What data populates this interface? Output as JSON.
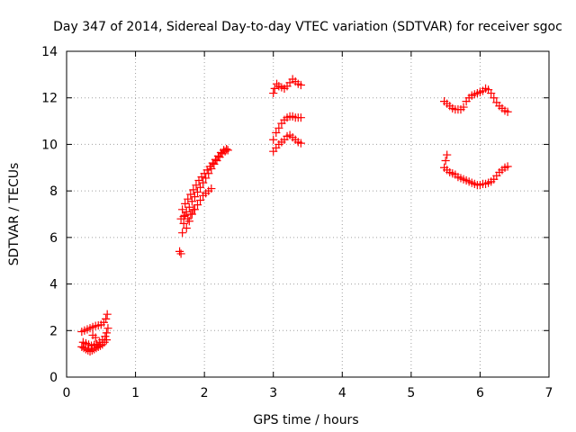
{
  "chart_data": {
    "type": "scatter",
    "title": "Day 347 of 2014, Sidereal Day-to-day VTEC variation (SDTVAR) for receiver sgoc",
    "xlabel": "GPS time / hours",
    "ylabel": "SDTVAR / TECUs",
    "xlim": [
      0,
      7
    ],
    "ylim": [
      0,
      14
    ],
    "xticks": [
      "0",
      "1",
      "2",
      "3",
      "4",
      "5",
      "6",
      "7"
    ],
    "yticks": [
      "0",
      "2",
      "4",
      "6",
      "8",
      "10",
      "12",
      "14"
    ],
    "grid": true,
    "marker": "plus",
    "color": "#ff0000",
    "series": [
      {
        "values": [],
        "points": [
          [
            0.22,
            1.95
          ],
          [
            0.26,
            2.0
          ],
          [
            0.3,
            2.05
          ],
          [
            0.34,
            2.1
          ],
          [
            0.38,
            2.15
          ],
          [
            0.42,
            2.2
          ],
          [
            0.46,
            2.22
          ],
          [
            0.5,
            2.25
          ],
          [
            0.54,
            2.35
          ],
          [
            0.57,
            2.5
          ],
          [
            0.59,
            2.7
          ],
          [
            0.22,
            1.3
          ],
          [
            0.25,
            1.25
          ],
          [
            0.28,
            1.2
          ],
          [
            0.31,
            1.15
          ],
          [
            0.34,
            1.1
          ],
          [
            0.37,
            1.15
          ],
          [
            0.4,
            1.2
          ],
          [
            0.43,
            1.25
          ],
          [
            0.46,
            1.3
          ],
          [
            0.49,
            1.35
          ],
          [
            0.52,
            1.4
          ],
          [
            0.55,
            1.5
          ],
          [
            0.58,
            1.6
          ],
          [
            0.24,
            1.5
          ],
          [
            0.28,
            1.45
          ],
          [
            0.32,
            1.4
          ],
          [
            0.36,
            1.35
          ],
          [
            0.4,
            1.38
          ],
          [
            0.44,
            1.42
          ],
          [
            0.48,
            1.5
          ],
          [
            0.52,
            1.6
          ],
          [
            0.56,
            1.75
          ],
          [
            0.58,
            1.9
          ],
          [
            0.6,
            2.1
          ],
          [
            0.38,
            1.8
          ],
          [
            0.42,
            1.7
          ],
          [
            1.64,
            5.4
          ],
          [
            1.66,
            5.3
          ],
          [
            1.66,
            6.8
          ],
          [
            1.7,
            6.6
          ],
          [
            1.74,
            6.4
          ],
          [
            1.78,
            6.7
          ],
          [
            1.82,
            7.0
          ],
          [
            1.86,
            7.2
          ],
          [
            1.9,
            7.4
          ],
          [
            1.94,
            7.6
          ],
          [
            1.98,
            7.8
          ],
          [
            2.02,
            7.9
          ],
          [
            2.06,
            8.0
          ],
          [
            2.1,
            8.1
          ],
          [
            1.68,
            6.2
          ],
          [
            1.7,
            6.9
          ],
          [
            1.74,
            7.1
          ],
          [
            1.78,
            7.3
          ],
          [
            1.82,
            7.55
          ],
          [
            1.86,
            7.75
          ],
          [
            1.9,
            7.95
          ],
          [
            1.94,
            8.15
          ],
          [
            1.98,
            8.35
          ],
          [
            2.02,
            8.55
          ],
          [
            2.06,
            8.75
          ],
          [
            2.1,
            8.95
          ],
          [
            2.14,
            9.15
          ],
          [
            2.18,
            9.3
          ],
          [
            2.22,
            9.45
          ],
          [
            2.26,
            9.6
          ],
          [
            2.3,
            9.7
          ],
          [
            2.34,
            9.75
          ],
          [
            1.68,
            7.2
          ],
          [
            1.72,
            7.45
          ],
          [
            1.76,
            7.65
          ],
          [
            1.8,
            7.85
          ],
          [
            1.84,
            8.05
          ],
          [
            1.88,
            8.25
          ],
          [
            1.92,
            8.45
          ],
          [
            1.96,
            8.6
          ],
          [
            2.0,
            8.75
          ],
          [
            2.04,
            8.9
          ],
          [
            2.08,
            9.05
          ],
          [
            2.12,
            9.2
          ],
          [
            2.16,
            9.35
          ],
          [
            2.2,
            9.5
          ],
          [
            2.24,
            9.65
          ],
          [
            2.28,
            9.75
          ],
          [
            2.32,
            9.8
          ],
          [
            1.72,
            6.95
          ],
          [
            1.76,
            6.8
          ],
          [
            1.8,
            7.0
          ],
          [
            1.84,
            7.2
          ],
          [
            3.0,
            12.2
          ],
          [
            3.02,
            12.4
          ],
          [
            3.05,
            12.6
          ],
          [
            3.08,
            12.5
          ],
          [
            3.12,
            12.45
          ],
          [
            3.16,
            12.4
          ],
          [
            3.2,
            12.5
          ],
          [
            3.24,
            12.65
          ],
          [
            3.28,
            12.8
          ],
          [
            3.32,
            12.7
          ],
          [
            3.36,
            12.6
          ],
          [
            3.4,
            12.55
          ],
          [
            3.0,
            10.2
          ],
          [
            3.04,
            10.5
          ],
          [
            3.08,
            10.7
          ],
          [
            3.12,
            10.9
          ],
          [
            3.16,
            11.05
          ],
          [
            3.2,
            11.15
          ],
          [
            3.24,
            11.2
          ],
          [
            3.28,
            11.2
          ],
          [
            3.32,
            11.15
          ],
          [
            3.36,
            11.15
          ],
          [
            3.4,
            11.15
          ],
          [
            3.0,
            9.7
          ],
          [
            3.04,
            9.85
          ],
          [
            3.08,
            10.0
          ],
          [
            3.12,
            10.1
          ],
          [
            3.16,
            10.2
          ],
          [
            3.2,
            10.35
          ],
          [
            3.24,
            10.4
          ],
          [
            3.28,
            10.3
          ],
          [
            3.32,
            10.2
          ],
          [
            3.36,
            10.1
          ],
          [
            3.4,
            10.05
          ],
          [
            5.48,
            11.85
          ],
          [
            5.52,
            11.75
          ],
          [
            5.56,
            11.65
          ],
          [
            5.6,
            11.55
          ],
          [
            5.64,
            11.5
          ],
          [
            5.68,
            11.5
          ],
          [
            5.72,
            11.5
          ],
          [
            5.76,
            11.6
          ],
          [
            5.8,
            11.85
          ],
          [
            5.84,
            12.0
          ],
          [
            5.88,
            12.1
          ],
          [
            5.92,
            12.15
          ],
          [
            5.96,
            12.2
          ],
          [
            6.0,
            12.25
          ],
          [
            6.04,
            12.3
          ],
          [
            6.08,
            12.4
          ],
          [
            6.12,
            12.35
          ],
          [
            6.16,
            12.2
          ],
          [
            6.2,
            12.0
          ],
          [
            6.24,
            11.8
          ],
          [
            6.28,
            11.65
          ],
          [
            6.32,
            11.55
          ],
          [
            6.36,
            11.45
          ],
          [
            6.4,
            11.4
          ],
          [
            5.48,
            9.0
          ],
          [
            5.5,
            9.3
          ],
          [
            5.52,
            9.55
          ],
          [
            5.52,
            8.9
          ],
          [
            5.56,
            8.8
          ],
          [
            5.6,
            8.75
          ],
          [
            5.64,
            8.7
          ],
          [
            5.68,
            8.6
          ],
          [
            5.72,
            8.55
          ],
          [
            5.76,
            8.5
          ],
          [
            5.8,
            8.45
          ],
          [
            5.84,
            8.4
          ],
          [
            5.88,
            8.35
          ],
          [
            5.92,
            8.3
          ],
          [
            5.96,
            8.25
          ],
          [
            6.0,
            8.25
          ],
          [
            6.04,
            8.3
          ],
          [
            6.08,
            8.3
          ],
          [
            6.12,
            8.35
          ],
          [
            6.16,
            8.4
          ],
          [
            6.2,
            8.5
          ],
          [
            6.24,
            8.65
          ],
          [
            6.28,
            8.8
          ],
          [
            6.32,
            8.9
          ],
          [
            6.36,
            9.0
          ],
          [
            6.4,
            9.05
          ]
        ]
      }
    ]
  }
}
